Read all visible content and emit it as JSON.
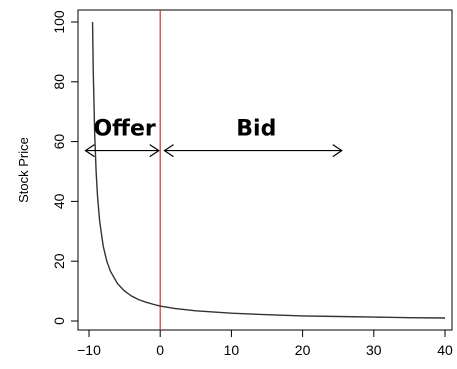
{
  "chart_data": {
    "type": "line",
    "title": "",
    "xlabel": "",
    "ylabel": "Stock Price",
    "xlim": [
      -10,
      40
    ],
    "ylim": [
      0,
      100
    ],
    "xticks": [
      -10,
      0,
      10,
      20,
      30,
      40
    ],
    "yticks": [
      0,
      20,
      40,
      60,
      80,
      100
    ],
    "xtick_labels": [
      "−10",
      "0",
      "10",
      "20",
      "30",
      "40"
    ],
    "ytick_labels": [
      "0",
      "20",
      "40",
      "60",
      "80",
      "100"
    ],
    "grid": false,
    "series": [
      {
        "x": [
          -9.5,
          -9.4,
          -9.2,
          -9.0,
          -8.8,
          -8.5,
          -8.0,
          -7.5,
          -7.0,
          -6.0,
          -5.0,
          -4.0,
          -3.0,
          -2.0,
          -1.0,
          0.0,
          2.0,
          5.0,
          10.0,
          15.0,
          20.0,
          25.0,
          30.0,
          35.0,
          40.0
        ],
        "y": [
          100,
          83.3,
          62.5,
          50.0,
          41.7,
          33.3,
          25.0,
          20.0,
          16.7,
          12.5,
          10.0,
          8.3,
          7.1,
          6.3,
          5.6,
          5.0,
          4.2,
          3.4,
          2.6,
          2.1,
          1.7,
          1.5,
          1.3,
          1.1,
          1.0
        ],
        "color": "#333333"
      }
    ],
    "vertical_line": {
      "x": 0,
      "color": "#cc3333"
    },
    "annotations": [
      {
        "text": "Offer",
        "x": -5.0,
        "y": 62
      },
      {
        "text": "Bid",
        "x": 13.5,
        "y": 62
      }
    ],
    "arrows": [
      {
        "from": -10.5,
        "to": -0.2,
        "y": 57
      },
      {
        "from": 0.6,
        "to": 25.5,
        "y": 57
      }
    ]
  }
}
